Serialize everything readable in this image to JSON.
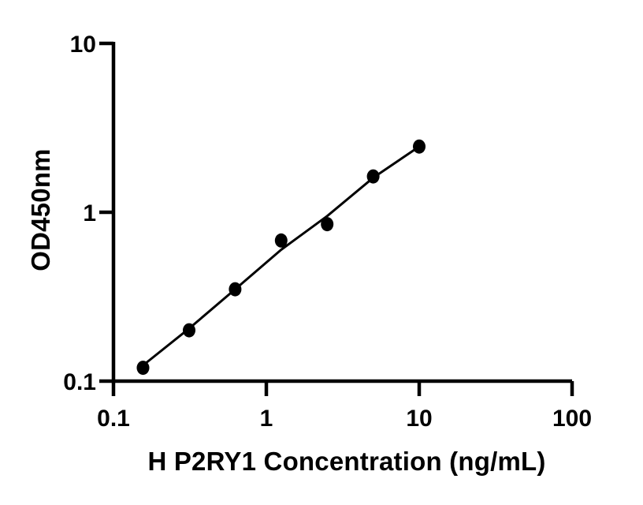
{
  "figure": {
    "background": "#ffffff",
    "ink_color": "#000000"
  },
  "chart_data": {
    "type": "scatter",
    "title": "",
    "xlabel": "H P2RY1 Concentration (ng/mL)",
    "ylabel": "OD450nm",
    "x_scale": "log10",
    "y_scale": "log10",
    "xlim": [
      0.1,
      100
    ],
    "ylim": [
      0.1,
      10
    ],
    "x_ticks": [
      "0.1",
      "1",
      "10",
      "100"
    ],
    "y_ticks": [
      "0.1",
      "1",
      "10"
    ],
    "grid": false,
    "legend": false,
    "marker": {
      "shape": "filled-circle",
      "color": "#000000"
    },
    "line": {
      "style": "solid",
      "color": "#000000"
    },
    "series": [
      {
        "name": "standard-curve-points",
        "x": [
          0.156,
          0.3125,
          0.625,
          1.25,
          2.5,
          5,
          10
        ],
        "y": [
          0.12,
          0.2,
          0.35,
          0.68,
          0.85,
          1.63,
          2.45
        ]
      }
    ],
    "fit_line": {
      "name": "fitted-curve",
      "x": [
        0.156,
        0.3125,
        0.625,
        1.25,
        2.5,
        5,
        10
      ],
      "y": [
        0.124,
        0.205,
        0.35,
        0.6,
        0.95,
        1.6,
        2.45
      ]
    }
  }
}
